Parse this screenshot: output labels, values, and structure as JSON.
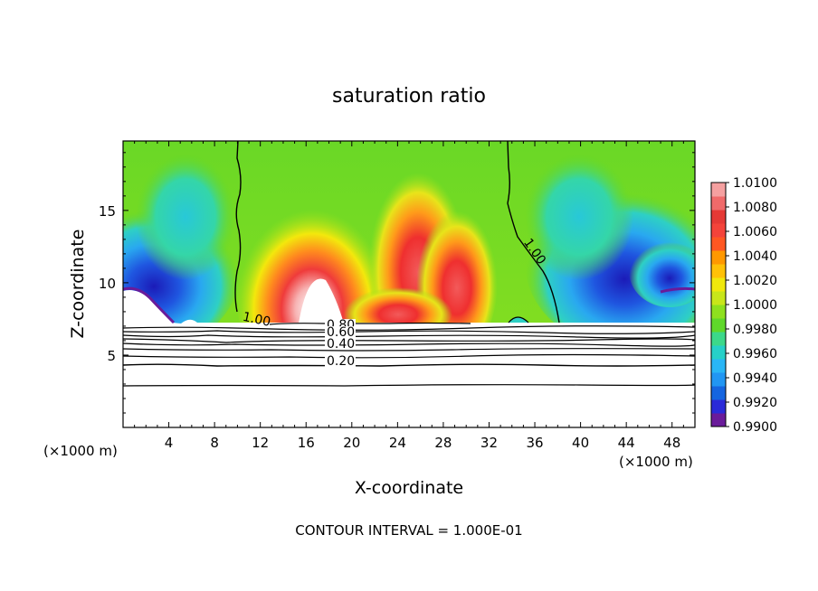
{
  "chart_data": {
    "type": "heatmap",
    "title": "saturation ratio",
    "xlabel": "X-coordinate",
    "ylabel": "Z-coordinate",
    "x_unit_left": "(×1000 m)",
    "x_unit_right": "(×1000 m)",
    "footer": "CONTOUR INTERVAL = 1.000E-01",
    "xlim": [
      0,
      50
    ],
    "ylim": [
      0,
      19.8
    ],
    "x_ticks": [
      4,
      8,
      12,
      16,
      20,
      24,
      28,
      32,
      36,
      40,
      44,
      48
    ],
    "x_tick_labels": [
      "4",
      "8",
      "12",
      "16",
      "20",
      "24",
      "28",
      "32",
      "36",
      "40",
      "44",
      "48"
    ],
    "y_ticks": [
      5,
      10,
      15
    ],
    "y_tick_labels": [
      "5",
      "10",
      "15"
    ],
    "colorbar": {
      "range": [
        0.99,
        1.01
      ],
      "tick_labels": [
        "1.0100",
        "1.0080",
        "1.0060",
        "1.0040",
        "1.0020",
        "1.0000",
        "0.9980",
        "0.9960",
        "0.9940",
        "0.9920",
        "0.9900"
      ],
      "colors": [
        "#6a1b9a",
        "#2a2ad8",
        "#1565e0",
        "#2196f3",
        "#29b6f6",
        "#26d0c8",
        "#3cd88a",
        "#5fd82a",
        "#8ee01e",
        "#c8e61a",
        "#f0e80c",
        "#ffc107",
        "#ff9800",
        "#ff5722",
        "#f4433a",
        "#e53935",
        "#f06a6a",
        "#f5a0a0"
      ]
    },
    "cloud_base_z": 7.3,
    "contour_labels": [
      {
        "text": "1.00",
        "x": 10.4,
        "z": 7.4
      },
      {
        "text": "1.00",
        "x": 35.0,
        "z": 12.8
      },
      {
        "text": "0.80",
        "x": 17.8,
        "z": 6.8
      },
      {
        "text": "0.60",
        "x": 17.8,
        "z": 6.3
      },
      {
        "text": "0.40",
        "x": 17.8,
        "z": 5.5
      },
      {
        "text": "0.20",
        "x": 17.8,
        "z": 4.3
      }
    ],
    "contour_levels": [
      1.0,
      0.9,
      0.8,
      0.7,
      0.6,
      0.5,
      0.4,
      0.3,
      0.2,
      0.1
    ]
  }
}
